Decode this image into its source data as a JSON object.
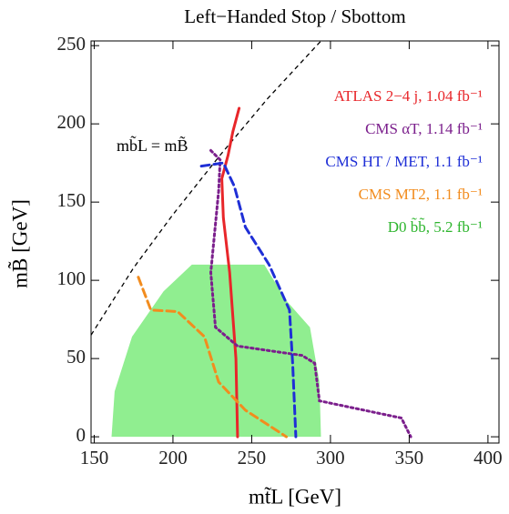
{
  "chart_data": {
    "type": "line",
    "title": "Left−Handed Stop / Sbottom",
    "x_label": "mt̃L  [GeV]",
    "y_label": "mB̃  [GeV]",
    "annotation": "mb̃L = mB̃",
    "xlim": [
      148,
      407
    ],
    "ylim": [
      -4,
      253
    ],
    "xticks": [
      150,
      200,
      250,
      300,
      350,
      400
    ],
    "yticks": [
      0,
      50,
      100,
      150,
      200,
      250
    ],
    "diagonal": {
      "color": "#000000",
      "x": [
        148,
        175,
        200,
        230,
        260,
        294
      ],
      "values": [
        65,
        108,
        142,
        180,
        216,
        253
      ]
    },
    "series": [
      {
        "name": "ATLAS 2−4 j,  1.04 fb⁻¹",
        "color": "#e8262a",
        "style": "solid",
        "x": [
          241,
          240,
          236,
          232,
          231,
          235,
          238,
          242
        ],
        "values": [
          0,
          50,
          105,
          140,
          165,
          180,
          195,
          210
        ]
      },
      {
        "name": "CMS αT,  1.14 fb⁻¹",
        "color": "#7b1f8c",
        "style": "dotted",
        "x": [
          224,
          230,
          229,
          224,
          227,
          241,
          282,
          290,
          293,
          345,
          351
        ],
        "values": [
          183,
          177,
          157,
          105,
          70,
          58,
          52,
          47,
          23,
          12,
          0
        ]
      },
      {
        "name": "CMS HT / MET,  1.1 fb⁻¹",
        "color": "#1f2fd6",
        "style": "dashed",
        "x": [
          218,
          232,
          239,
          246,
          261,
          274,
          276,
          278
        ],
        "values": [
          173,
          175,
          160,
          134,
          110,
          81,
          47,
          0
        ]
      },
      {
        "name": "CMS MT2,  1.1 fb⁻¹",
        "color": "#f28c1e",
        "style": "dashed",
        "x": [
          178,
          186,
          203,
          220,
          229,
          246,
          272
        ],
        "values": [
          102,
          81,
          80,
          64,
          35,
          17,
          0
        ]
      },
      {
        "name": "D0 b̃b̃,  5.2 fb⁻¹",
        "color": "#90ee90",
        "style": "fill",
        "x": [
          161,
          163,
          174,
          194,
          212,
          258,
          272,
          287,
          293,
          294
        ],
        "values": [
          0,
          29,
          64,
          93,
          110,
          110,
          87,
          70,
          35,
          0
        ]
      }
    ]
  }
}
